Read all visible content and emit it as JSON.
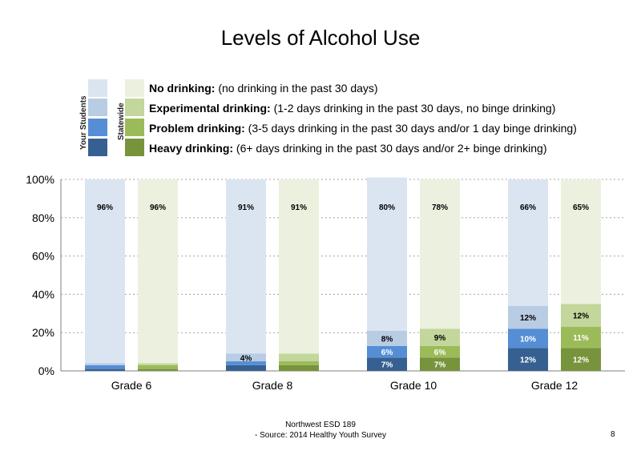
{
  "title": "Levels of Alcohol Use",
  "legend": {
    "group_labels": [
      "Your Students",
      "Statewide"
    ],
    "items": [
      {
        "bold": "No drinking:",
        "desc": " (no drinking in the past 30 days)"
      },
      {
        "bold": "Experimental drinking:",
        "desc": " (1-2 days drinking in the past 30 days, no binge drinking)"
      },
      {
        "bold": "Problem drinking:",
        "desc": " (3-5 days drinking in the past 30 days and/or 1 day binge drinking)"
      },
      {
        "bold": "Heavy drinking:",
        "desc": " (6+ days drinking in the past 30 days and/or 2+ binge drinking)"
      }
    ]
  },
  "colors": {
    "your_students": [
      "#dbe5f1",
      "#b8cce4",
      "#558ed5",
      "#376092"
    ],
    "statewide": [
      "#ebf1de",
      "#c3d69b",
      "#9bbb59",
      "#77933c"
    ]
  },
  "chart_data": {
    "type": "bar",
    "stacked": true,
    "categories": [
      "Grade 6",
      "Grade 8",
      "Grade 10",
      "Grade 12"
    ],
    "groups": [
      "Your Students",
      "Statewide"
    ],
    "series": [
      {
        "name": "Heavy drinking",
        "your_students": [
          1,
          3,
          7,
          12
        ],
        "statewide": [
          1,
          3,
          7,
          12
        ]
      },
      {
        "name": "Problem drinking",
        "your_students": [
          2,
          2,
          6,
          10
        ],
        "statewide": [
          2,
          2,
          6,
          11
        ]
      },
      {
        "name": "Experimental drinking",
        "your_students": [
          1,
          4,
          8,
          12
        ],
        "statewide": [
          1,
          4,
          9,
          12
        ]
      },
      {
        "name": "No drinking",
        "your_students": [
          96,
          91,
          80,
          66
        ],
        "statewide": [
          96,
          91,
          78,
          65
        ]
      }
    ],
    "data_labels": {
      "your_students": [
        [
          "",
          "",
          "",
          "96%"
        ],
        [
          "",
          "",
          "4%",
          "91%"
        ],
        [
          "7%",
          "6%",
          "8%",
          "80%"
        ],
        [
          "12%",
          "10%",
          "12%",
          "66%"
        ]
      ],
      "statewide": [
        [
          "",
          "",
          "",
          "96%"
        ],
        [
          "",
          "",
          "",
          "91%"
        ],
        [
          "7%",
          "6%",
          "9%",
          "78%"
        ],
        [
          "12%",
          "11%",
          "12%",
          "65%"
        ]
      ]
    },
    "ylim": [
      0,
      100
    ],
    "yticks": [
      "0%",
      "20%",
      "40%",
      "60%",
      "80%",
      "100%"
    ],
    "grid": true
  },
  "footer": {
    "line1": "Northwest ESD  189",
    "line2": "- Source: 2014 Healthy  Youth Survey",
    "page": "8"
  }
}
